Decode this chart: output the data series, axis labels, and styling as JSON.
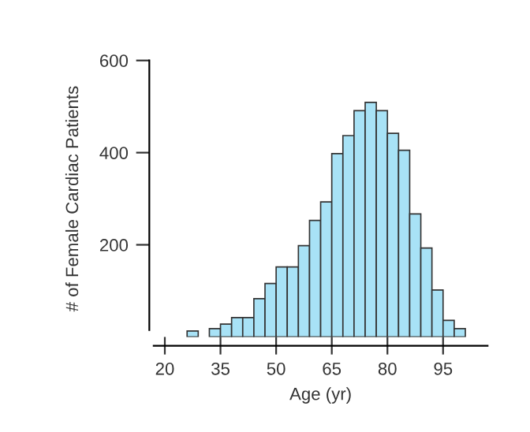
{
  "chart_data": {
    "type": "histogram",
    "xlabel": "Age (yr)",
    "ylabel": "# of Female Cardiac Patients",
    "bins": [
      26,
      29,
      32,
      35,
      38,
      41,
      44,
      47,
      50,
      53,
      56,
      59,
      62,
      65,
      68,
      71,
      74,
      77,
      80,
      83,
      86,
      89,
      92,
      95,
      98,
      101
    ],
    "values": [
      13,
      0,
      18,
      28,
      42,
      42,
      83,
      116,
      152,
      152,
      198,
      253,
      293,
      398,
      437,
      491,
      509,
      491,
      442,
      405,
      267,
      193,
      102,
      36,
      18
    ],
    "color": "#a8e2f6",
    "xlim": [
      17,
      107
    ],
    "xticks": [
      20,
      35,
      50,
      65,
      80,
      95
    ],
    "ylim": [
      0,
      600
    ],
    "yticks": [
      200,
      400,
      600
    ],
    "grid": false
  }
}
